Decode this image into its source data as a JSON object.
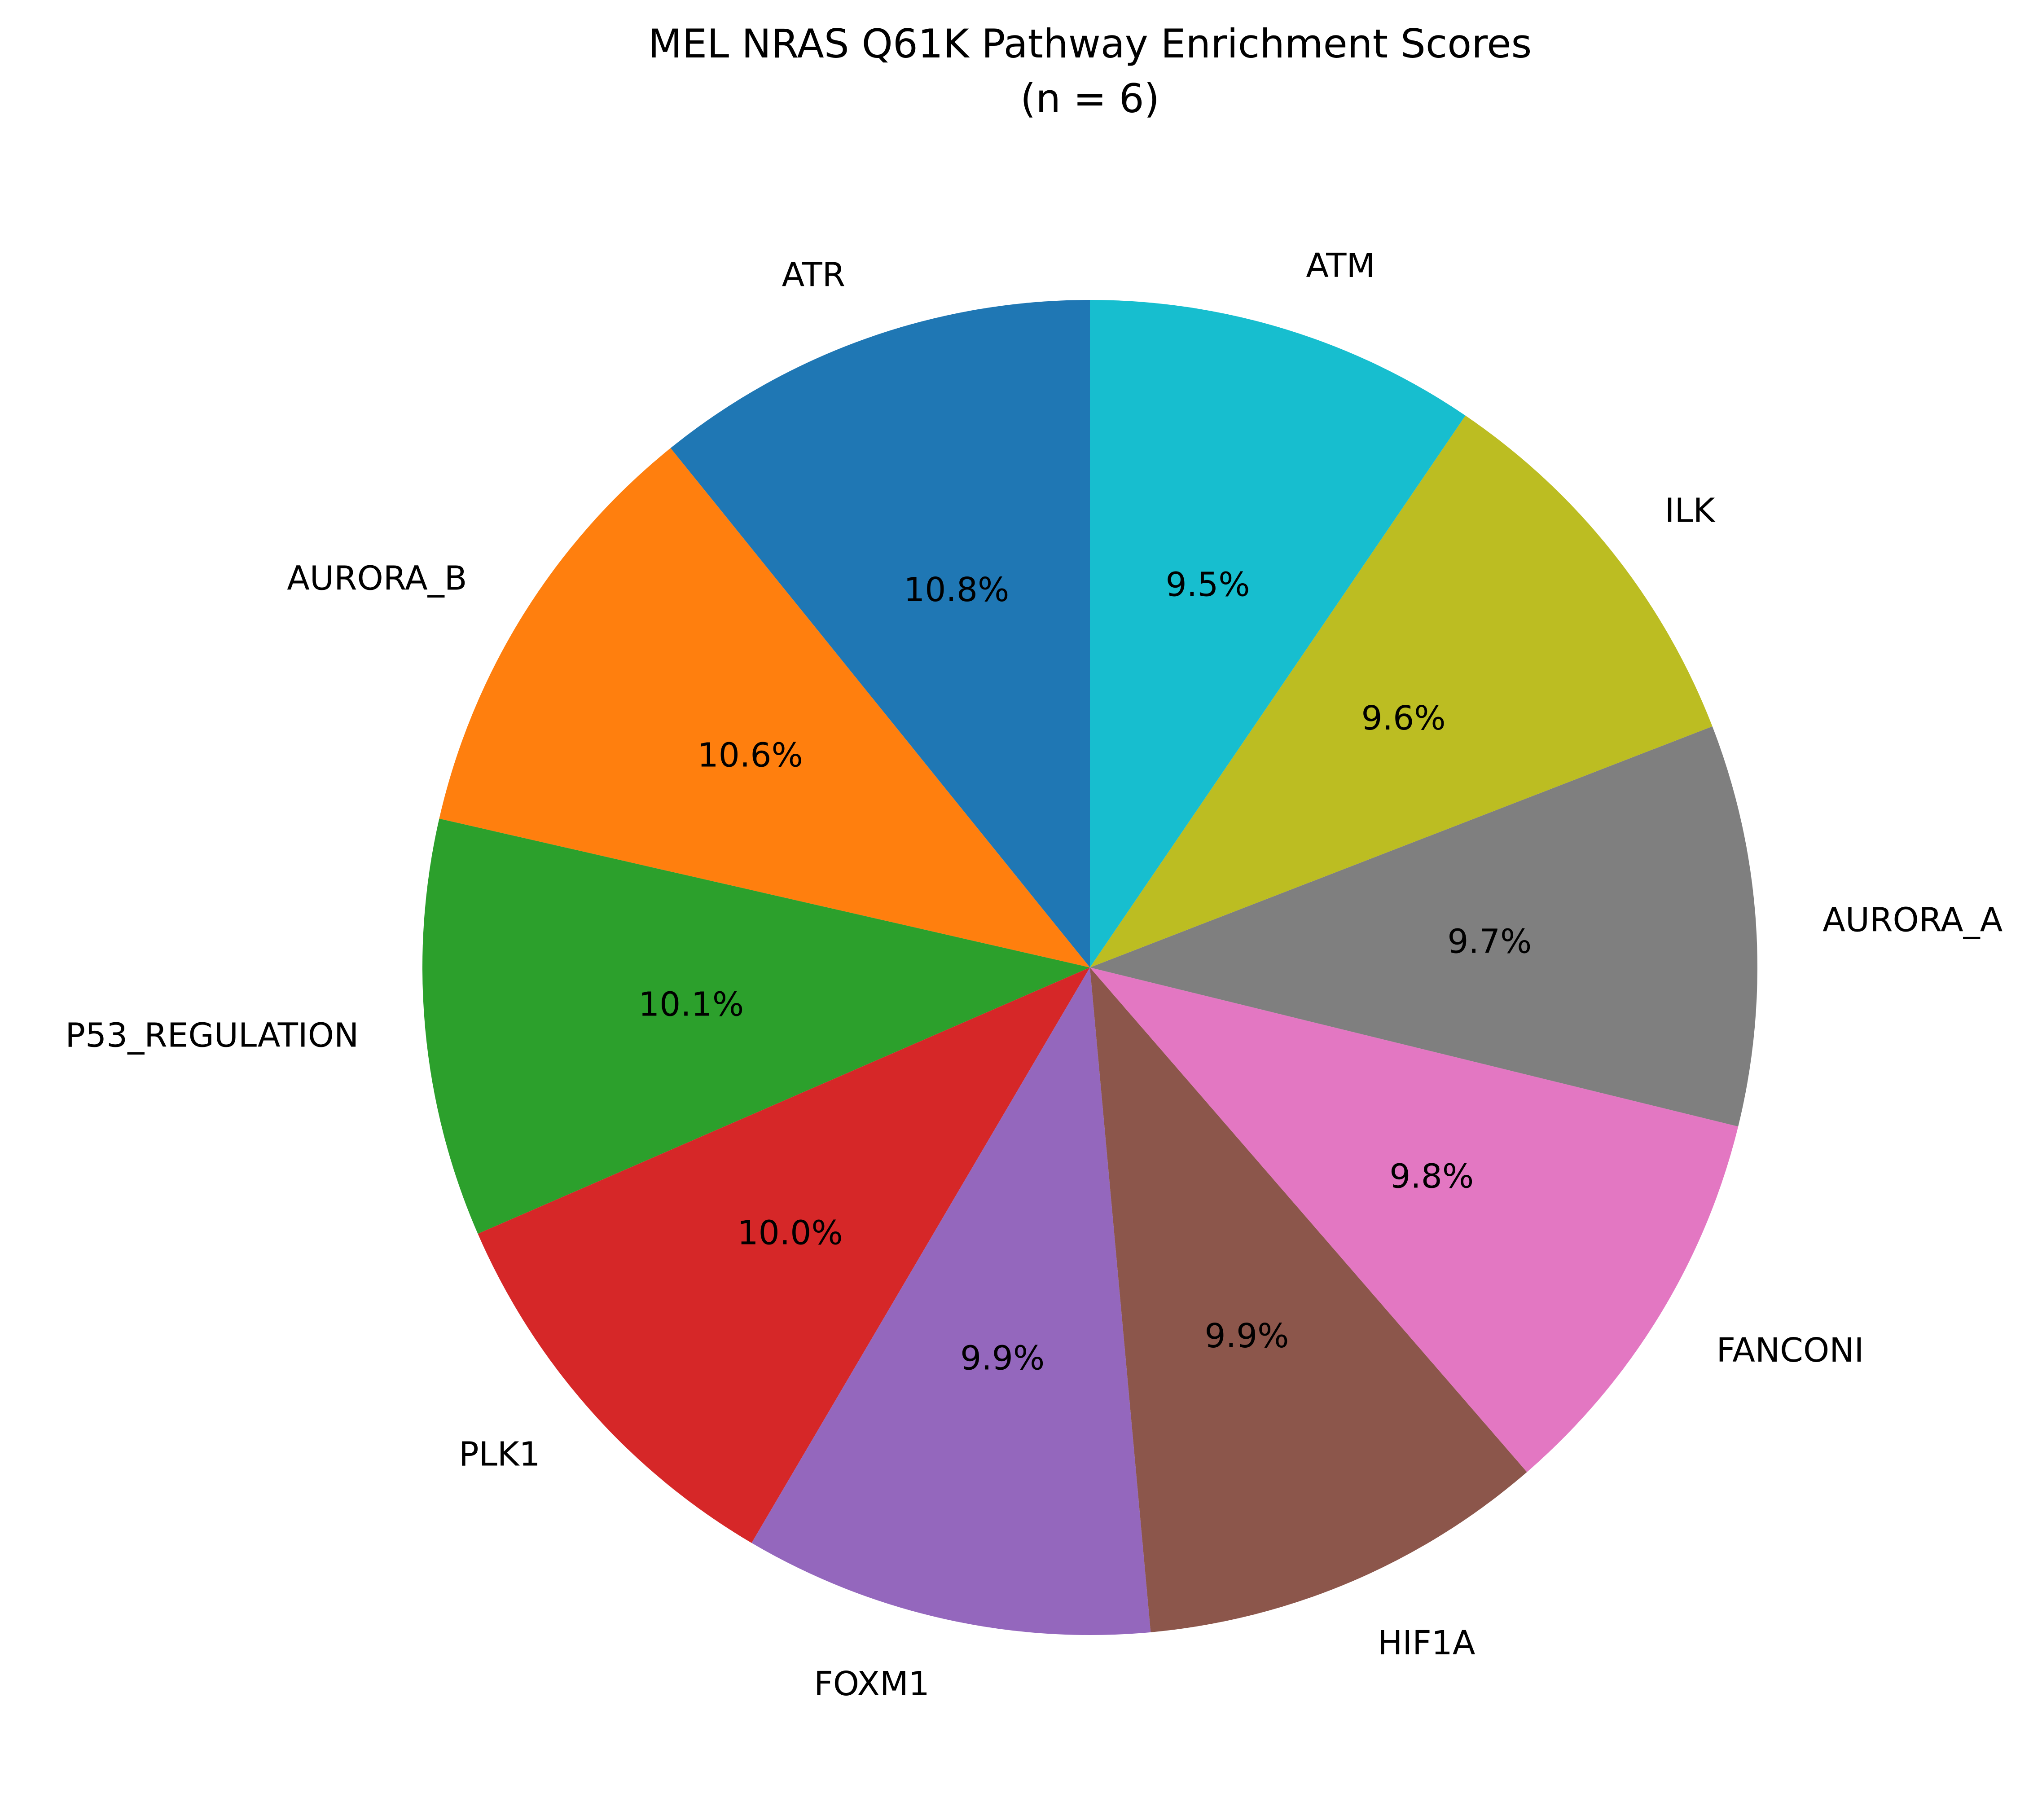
{
  "chart_data": {
    "type": "pie",
    "title": "MEL NRAS Q61K Pathway Enrichment Scores",
    "subtitle": "(n = 6)",
    "start_angle_deg": 90,
    "direction": "counterclockwise",
    "slices": [
      {
        "label": "ATR",
        "value": 10.8,
        "pct_text": "10.8%",
        "color": "#1f77b4"
      },
      {
        "label": "AURORA_B",
        "value": 10.6,
        "pct_text": "10.6%",
        "color": "#ff7f0e"
      },
      {
        "label": "P53_REGULATION",
        "value": 10.1,
        "pct_text": "10.1%",
        "color": "#2ca02c"
      },
      {
        "label": "PLK1",
        "value": 10.0,
        "pct_text": "10.0%",
        "color": "#d62728"
      },
      {
        "label": "FOXM1",
        "value": 9.9,
        "pct_text": "9.9%",
        "color": "#9467bd"
      },
      {
        "label": "HIF1A",
        "value": 9.9,
        "pct_text": "9.9%",
        "color": "#8c564b"
      },
      {
        "label": "FANCONI",
        "value": 9.8,
        "pct_text": "9.8%",
        "color": "#e377c2"
      },
      {
        "label": "AURORA_A",
        "value": 9.7,
        "pct_text": "9.7%",
        "color": "#7f7f7f"
      },
      {
        "label": "ILK",
        "value": 9.6,
        "pct_text": "9.6%",
        "color": "#bcbd22"
      },
      {
        "label": "ATM",
        "value": 9.5,
        "pct_text": "9.5%",
        "color": "#17becf"
      }
    ]
  }
}
